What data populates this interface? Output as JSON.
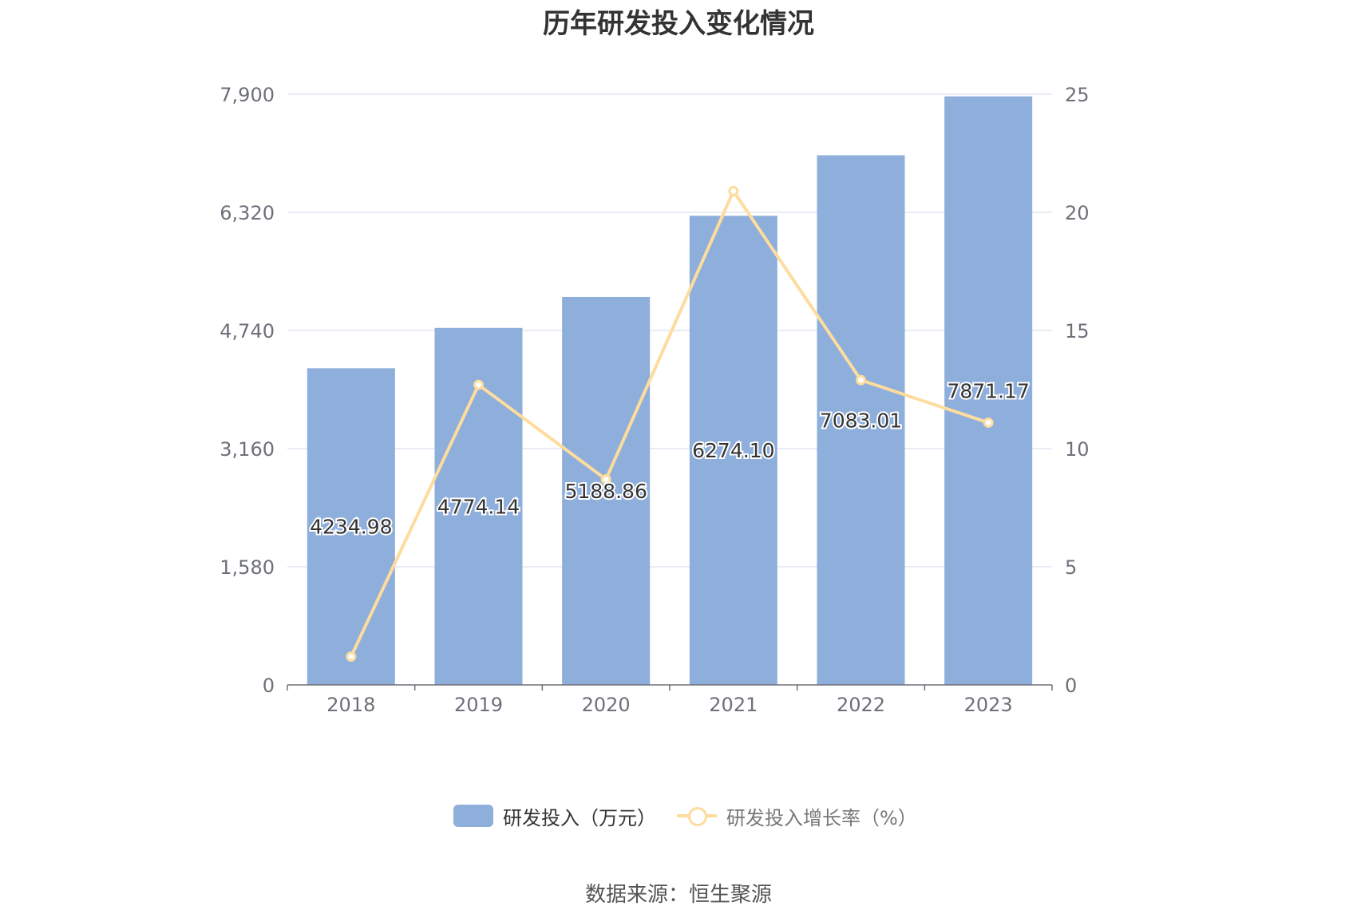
{
  "title": "历年研发投入变化情况",
  "source": "数据来源：恒生聚源",
  "colors": {
    "bar": "#8eaedb",
    "line": "#fddc9e",
    "grid": "#e1e6f0",
    "axis_text": "#6e7079",
    "label_text": "#333333"
  },
  "legend": {
    "bar_label": "研发投入（万元）",
    "line_label": "研发投入增长率（%）"
  },
  "chart_data": {
    "type": "bar",
    "categories": [
      "2018",
      "2019",
      "2020",
      "2021",
      "2022",
      "2023"
    ],
    "series": [
      {
        "name": "研发投入（万元）",
        "type": "bar",
        "axis": "left",
        "values": [
          4234.98,
          4774.14,
          5188.86,
          6274.1,
          7083.01,
          7871.17
        ],
        "labels": [
          "4234.98",
          "4774.14",
          "5188.86",
          "6274.10",
          "7083.01",
          "7871.17"
        ]
      },
      {
        "name": "研发投入增长率（%）",
        "type": "line",
        "axis": "right",
        "values": [
          1.2,
          12.7,
          8.7,
          20.9,
          12.9,
          11.1
        ]
      }
    ],
    "y_left": {
      "min": 0,
      "max": 7900,
      "ticks": [
        0,
        1580,
        3160,
        4740,
        6320,
        7900
      ],
      "tick_labels": [
        "0",
        "1,580",
        "3,160",
        "4,740",
        "6,320",
        "7,900"
      ]
    },
    "y_right": {
      "min": 0,
      "max": 25,
      "ticks": [
        0,
        5,
        10,
        15,
        20,
        25
      ],
      "tick_labels": [
        "0",
        "5",
        "10",
        "15",
        "20",
        "25"
      ]
    },
    "grid": true,
    "legend_position": "bottom"
  }
}
